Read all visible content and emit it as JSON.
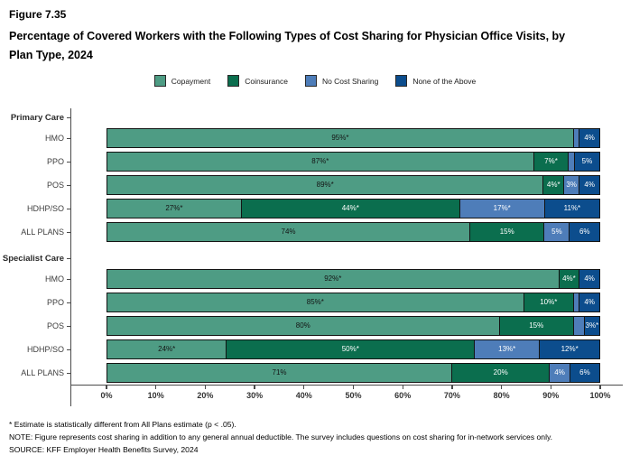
{
  "header": {
    "figure_label": "Figure 7.35",
    "title": "Percentage of Covered Workers with the Following Types of Cost Sharing for Physician Office Visits, by Plan Type, 2024"
  },
  "footnotes": {
    "star": "* Estimate is statistically different from All Plans estimate (p < .05).",
    "note": "NOTE: Figure represents cost sharing in addition to any general annual deductible. The survey includes questions on cost sharing for in-network services only.",
    "source": "SOURCE: KFF Employer Health Benefits Survey, 2024"
  },
  "chart_data": {
    "type": "bar",
    "stacked": true,
    "orientation": "horizontal",
    "xlim": [
      0,
      100
    ],
    "x_tick_labels": [
      "0%",
      "10%",
      "20%",
      "30%",
      "40%",
      "50%",
      "60%",
      "70%",
      "80%",
      "90%",
      "100%"
    ],
    "legend_position": "top-center",
    "series_names": [
      "Copayment",
      "Coinsurance",
      "No Cost Sharing",
      "None of the Above"
    ],
    "series_colors": [
      "#4e9c84",
      "#0b6e4e",
      "#4e7db9",
      "#0c4d8d"
    ],
    "series_label_colors": [
      "#141414",
      "#ffffff",
      "#ffffff",
      "#ffffff"
    ],
    "sections": [
      {
        "label": "Primary Care",
        "rows": [
          {
            "label": "HMO",
            "values": [
              95,
              0,
              1,
              4
            ],
            "value_labels": [
              "95%*",
              "",
              "",
              "4%"
            ]
          },
          {
            "label": "PPO",
            "values": [
              87,
              7,
              1,
              5
            ],
            "value_labels": [
              "87%*",
              "7%*",
              "",
              "5%"
            ]
          },
          {
            "label": "POS",
            "values": [
              89,
              4,
              3,
              4
            ],
            "value_labels": [
              "89%*",
              "4%*",
              "3%",
              "4%"
            ]
          },
          {
            "label": "HDHP/SO",
            "values": [
              27,
              44,
              17,
              11
            ],
            "value_labels": [
              "27%*",
              "44%*",
              "17%*",
              "11%*"
            ]
          },
          {
            "label": "ALL PLANS",
            "values": [
              74,
              15,
              5,
              6
            ],
            "value_labels": [
              "74%",
              "15%",
              "5%",
              "6%"
            ]
          }
        ]
      },
      {
        "label": "Specialist Care",
        "rows": [
          {
            "label": "HMO",
            "values": [
              92,
              4,
              0,
              4
            ],
            "value_labels": [
              "92%*",
              "4%*",
              "",
              "4%"
            ]
          },
          {
            "label": "PPO",
            "values": [
              85,
              10,
              1,
              4
            ],
            "value_labels": [
              "85%*",
              "10%*",
              "",
              "4%"
            ]
          },
          {
            "label": "POS",
            "values": [
              80,
              15,
              2,
              3
            ],
            "value_labels": [
              "80%",
              "15%",
              "",
              "3%*"
            ]
          },
          {
            "label": "HDHP/SO",
            "values": [
              24,
              50,
              13,
              12
            ],
            "value_labels": [
              "24%*",
              "50%*",
              "13%*",
              "12%*"
            ]
          },
          {
            "label": "ALL PLANS",
            "values": [
              71,
              20,
              4,
              6
            ],
            "value_labels": [
              "71%",
              "20%",
              "4%",
              "6%"
            ]
          }
        ]
      }
    ]
  }
}
